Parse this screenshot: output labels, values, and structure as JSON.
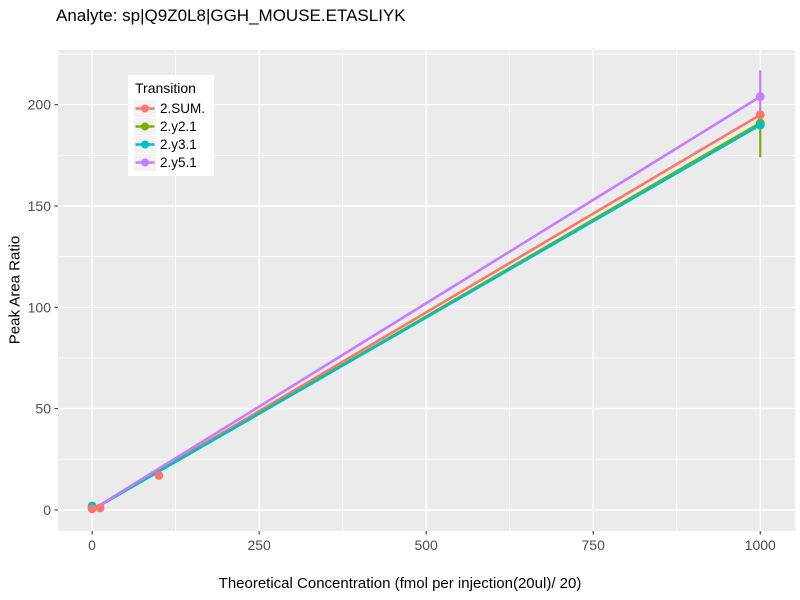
{
  "chart_data": {
    "type": "scatter+line",
    "title": "Analyte: sp|Q9Z0L8|GGH_MOUSE.ETASLIYK",
    "xlabel": "Theoretical Concentration (fmol per injection(20ul)/ 20)",
    "ylabel": "Peak Area Ratio",
    "xlim": [
      -51,
      1052
    ],
    "ylim": [
      -10.4,
      227
    ],
    "x_ticks": [
      0,
      250,
      500,
      750,
      1000
    ],
    "y_ticks": [
      0,
      50,
      100,
      150,
      200
    ],
    "x_minor_ticks": [
      125,
      375,
      625,
      875
    ],
    "y_minor_ticks": [
      25,
      75,
      125,
      175,
      225
    ],
    "grid": true,
    "legend": {
      "title": "Transition",
      "position": "top-left-inside"
    },
    "colors": {
      "panel_background": "#EBEBEB",
      "grid": "#FFFFFF",
      "tick_label": "#4D4D4D",
      "tick_mark": "#333333",
      "legend_key_background": "#F2F2F2"
    },
    "series": [
      {
        "name": "2.SUM.",
        "color": "#F8766D",
        "regression_line": {
          "x": [
            0,
            1000
          ],
          "y": [
            0,
            195
          ]
        },
        "points": [
          [
            0,
            0.5
          ],
          [
            12,
            1
          ],
          [
            100,
            17
          ],
          [
            1000,
            195
          ]
        ]
      },
      {
        "name": "2.y2.1",
        "color": "#7CAE00",
        "regression_line": {
          "x": [
            0,
            1000
          ],
          "y": [
            0,
            191
          ]
        },
        "points": [
          [
            0,
            1
          ],
          [
            1000,
            191
          ]
        ],
        "errorbar": {
          "x": 1000,
          "ymin": 174,
          "ymax": 193
        }
      },
      {
        "name": "2.y3.1",
        "color": "#00BFC4",
        "regression_line": {
          "x": [
            0,
            1000
          ],
          "y": [
            0,
            190
          ]
        },
        "points": [
          [
            0,
            2
          ],
          [
            1000,
            190
          ]
        ]
      },
      {
        "name": "2.y5.1",
        "color": "#C77CFF",
        "regression_line": {
          "x": [
            0,
            1000
          ],
          "y": [
            0,
            204
          ]
        },
        "points": [
          [
            0,
            1
          ],
          [
            1000,
            204
          ]
        ],
        "errorbar": {
          "x": 1000,
          "ymin": 193,
          "ymax": 217
        }
      }
    ]
  }
}
